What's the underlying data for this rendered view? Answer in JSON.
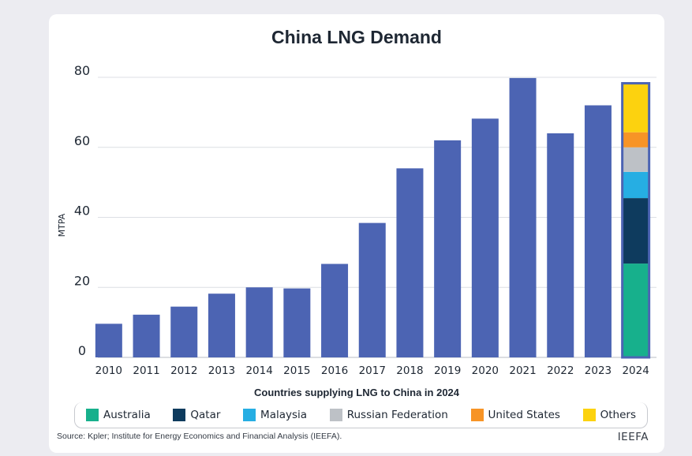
{
  "chart_data": {
    "type": "bar",
    "title": "China LNG Demand",
    "ylabel": "MTPA",
    "xlabel": "",
    "ylim": [
      0,
      80
    ],
    "yticks": [
      0,
      20,
      40,
      60,
      80
    ],
    "grid": true,
    "categories": [
      "2010",
      "2011",
      "2012",
      "2013",
      "2014",
      "2015",
      "2016",
      "2017",
      "2018",
      "2019",
      "2020",
      "2021",
      "2022",
      "2023",
      "2024"
    ],
    "values": [
      9.6,
      12.2,
      14.5,
      18.2,
      20.0,
      19.7,
      26.7,
      38.4,
      54.0,
      62.0,
      68.2,
      79.8,
      64.0,
      72.0,
      null
    ],
    "bar_color": "#4c64b3",
    "stacked_bar": {
      "category": "2024",
      "segments": [
        {
          "name": "Australia",
          "value": 26.8,
          "color": "#17b08c"
        },
        {
          "name": "Qatar",
          "value": 18.7,
          "color": "#0e3b5e"
        },
        {
          "name": "Malaysia",
          "value": 7.5,
          "color": "#26aee3"
        },
        {
          "name": "Russian Federation",
          "value": 7.0,
          "color": "#bdc1c6"
        },
        {
          "name": "United States",
          "value": 4.3,
          "color": "#f79426"
        },
        {
          "name": "Others",
          "value": 14.0,
          "color": "#fcd20f"
        }
      ]
    },
    "legend_title": "Countries supplying LNG to China in 2024",
    "legend_placement": "bottom"
  },
  "footer": {
    "source": "Source: Kpler; Institute for Energy Economics and Financial Analysis (IEEFA).",
    "brand": "IEEFA"
  }
}
